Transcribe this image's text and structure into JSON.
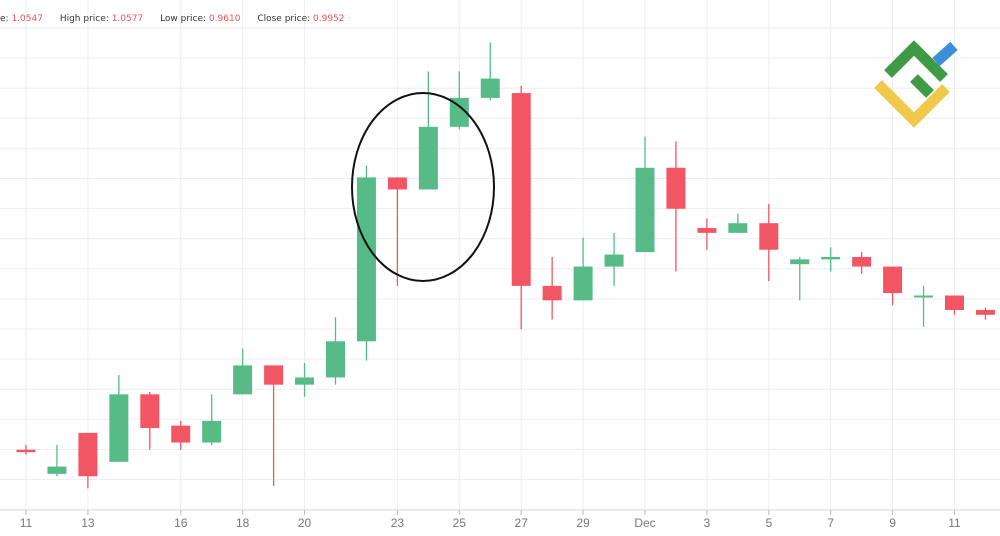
{
  "legend": {
    "open_label": "e:",
    "open_value": "1.0547",
    "high_label": "High price:",
    "high_value": "1.0577",
    "low_label": "Low price:",
    "low_value": "0.9610",
    "close_label": "Close price:",
    "close_value": "0.9952"
  },
  "colors": {
    "up": "#56bb87",
    "down": "#f25563",
    "grid": "#eeeeee",
    "axis_text": "#777777",
    "annotation": "#111111"
  },
  "chart_data": {
    "type": "candlestick",
    "x_tick_labels": [
      "11",
      "13",
      "16",
      "18",
      "20",
      "23",
      "25",
      "27",
      "29",
      "Dec",
      "3",
      "5",
      "7",
      "9",
      "11"
    ],
    "candles": [
      {
        "t": 0,
        "o": 0.72,
        "h": 0.722,
        "l": 0.718,
        "c": 0.719
      },
      {
        "t": 1,
        "o": 0.71,
        "h": 0.722,
        "l": 0.709,
        "c": 0.713
      },
      {
        "t": 2,
        "o": 0.727,
        "h": 0.727,
        "l": 0.704,
        "c": 0.709
      },
      {
        "t": 3,
        "o": 0.715,
        "h": 0.751,
        "l": 0.715,
        "c": 0.743
      },
      {
        "t": 4,
        "o": 0.743,
        "h": 0.744,
        "l": 0.72,
        "c": 0.729
      },
      {
        "t": 5,
        "o": 0.73,
        "h": 0.732,
        "l": 0.72,
        "c": 0.723
      },
      {
        "t": 6,
        "o": 0.723,
        "h": 0.743,
        "l": 0.722,
        "c": 0.732
      },
      {
        "t": 7,
        "o": 0.743,
        "h": 0.762,
        "l": 0.743,
        "c": 0.755
      },
      {
        "t": 8,
        "o": 0.755,
        "h": 0.755,
        "l": 0.705,
        "c": 0.747
      },
      {
        "t": 9,
        "o": 0.747,
        "h": 0.756,
        "l": 0.742,
        "c": 0.75
      },
      {
        "t": 10,
        "o": 0.75,
        "h": 0.775,
        "l": 0.747,
        "c": 0.765
      },
      {
        "t": 11,
        "o": 0.765,
        "h": 0.838,
        "l": 0.757,
        "c": 0.833
      },
      {
        "t": 12,
        "o": 0.833,
        "h": 0.833,
        "l": 0.788,
        "c": 0.828
      },
      {
        "t": 13,
        "o": 0.828,
        "h": 0.877,
        "l": 0.828,
        "c": 0.854
      },
      {
        "t": 14,
        "o": 0.854,
        "h": 0.877,
        "l": 0.853,
        "c": 0.866
      },
      {
        "t": 15,
        "o": 0.866,
        "h": 0.889,
        "l": 0.865,
        "c": 0.874
      },
      {
        "t": 16,
        "o": 0.868,
        "h": 0.871,
        "l": 0.77,
        "c": 0.788
      },
      {
        "t": 17,
        "o": 0.788,
        "h": 0.8,
        "l": 0.774,
        "c": 0.782
      },
      {
        "t": 18,
        "o": 0.782,
        "h": 0.808,
        "l": 0.782,
        "c": 0.796
      },
      {
        "t": 19,
        "o": 0.796,
        "h": 0.81,
        "l": 0.788,
        "c": 0.801
      },
      {
        "t": 20,
        "o": 0.802,
        "h": 0.85,
        "l": 0.802,
        "c": 0.837
      },
      {
        "t": 21,
        "o": 0.837,
        "h": 0.848,
        "l": 0.794,
        "c": 0.82
      },
      {
        "t": 22,
        "o": 0.812,
        "h": 0.816,
        "l": 0.803,
        "c": 0.81
      },
      {
        "t": 23,
        "o": 0.81,
        "h": 0.818,
        "l": 0.81,
        "c": 0.814
      },
      {
        "t": 24,
        "o": 0.814,
        "h": 0.822,
        "l": 0.79,
        "c": 0.803
      },
      {
        "t": 25,
        "o": 0.797,
        "h": 0.8,
        "l": 0.782,
        "c": 0.799
      },
      {
        "t": 26,
        "o": 0.799,
        "h": 0.804,
        "l": 0.794,
        "c": 0.8
      },
      {
        "t": 27,
        "o": 0.8,
        "h": 0.802,
        "l": 0.793,
        "c": 0.796
      },
      {
        "t": 28,
        "o": 0.796,
        "h": 0.796,
        "l": 0.78,
        "c": 0.785
      },
      {
        "t": 29,
        "o": 0.784,
        "h": 0.788,
        "l": 0.771,
        "c": 0.784
      },
      {
        "t": 30,
        "o": 0.784,
        "h": 0.784,
        "l": 0.776,
        "c": 0.778
      },
      {
        "t": 31,
        "o": 0.778,
        "h": 0.779,
        "l": 0.774,
        "c": 0.776
      },
      {
        "t": 32,
        "o": 0.776,
        "h": 0.78,
        "l": 0.773,
        "c": 0.779
      }
    ],
    "x_axis_tick_positions": [
      0,
      2,
      5,
      7,
      9,
      12,
      14,
      16,
      18,
      20,
      22,
      24,
      26,
      28,
      30
    ],
    "y_range": [
      0.695,
      0.895
    ],
    "grid": true,
    "annotation": "ellipse-around-candles-13-15"
  }
}
